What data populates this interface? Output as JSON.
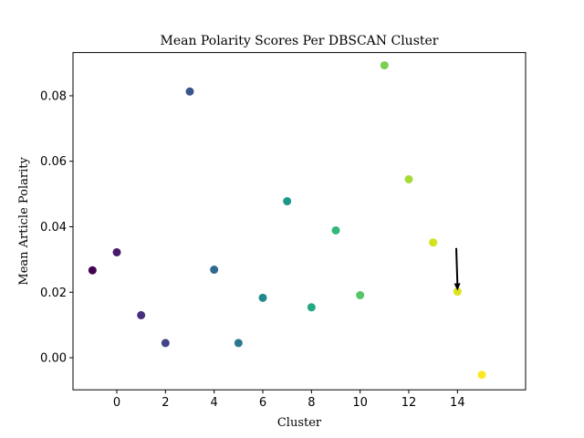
{
  "chart_data": {
    "type": "scatter",
    "title": "Mean Polarity Scores Per DBSCAN Cluster",
    "xlabel": "Cluster",
    "ylabel": "Mean Article Polarity",
    "xlim": [
      -1.8,
      16.8
    ],
    "ylim": [
      -0.0098,
      0.0932
    ],
    "xticks": [
      0,
      2,
      4,
      6,
      8,
      10,
      12,
      14
    ],
    "yticks": [
      0.0,
      0.02,
      0.04,
      0.06,
      0.08
    ],
    "xtick_labels": [
      "0",
      "2",
      "4",
      "6",
      "8",
      "10",
      "12",
      "14"
    ],
    "ytick_labels": [
      "0.00",
      "0.02",
      "0.04",
      "0.06",
      "0.08"
    ],
    "grid": false,
    "colormap": "viridis",
    "points": [
      {
        "x": -1,
        "y": 0.0267,
        "color": "#440154"
      },
      {
        "x": 0,
        "y": 0.0322,
        "color": "#481a6c"
      },
      {
        "x": 1,
        "y": 0.013,
        "color": "#472f7d"
      },
      {
        "x": 2,
        "y": 0.0045,
        "color": "#414487"
      },
      {
        "x": 3,
        "y": 0.0813,
        "color": "#39568c"
      },
      {
        "x": 4,
        "y": 0.0269,
        "color": "#31688e"
      },
      {
        "x": 5,
        "y": 0.0045,
        "color": "#2a788e"
      },
      {
        "x": 6,
        "y": 0.0183,
        "color": "#23888e"
      },
      {
        "x": 7,
        "y": 0.0478,
        "color": "#1f988b"
      },
      {
        "x": 8,
        "y": 0.0154,
        "color": "#22a884"
      },
      {
        "x": 9,
        "y": 0.0389,
        "color": "#35b779"
      },
      {
        "x": 10,
        "y": 0.0191,
        "color": "#54c568"
      },
      {
        "x": 11,
        "y": 0.0893,
        "color": "#7ad151"
      },
      {
        "x": 12,
        "y": 0.0545,
        "color": "#a5db36"
      },
      {
        "x": 13,
        "y": 0.0352,
        "color": "#d2e21b"
      },
      {
        "x": 14,
        "y": 0.0202,
        "color": "#dde318"
      },
      {
        "x": 15,
        "y": -0.0052,
        "color": "#fde725"
      }
    ],
    "annotation": {
      "type": "arrow",
      "from": [
        13.95,
        0.0335
      ],
      "to": [
        14.0,
        0.0205
      ],
      "color": "#000000"
    }
  }
}
